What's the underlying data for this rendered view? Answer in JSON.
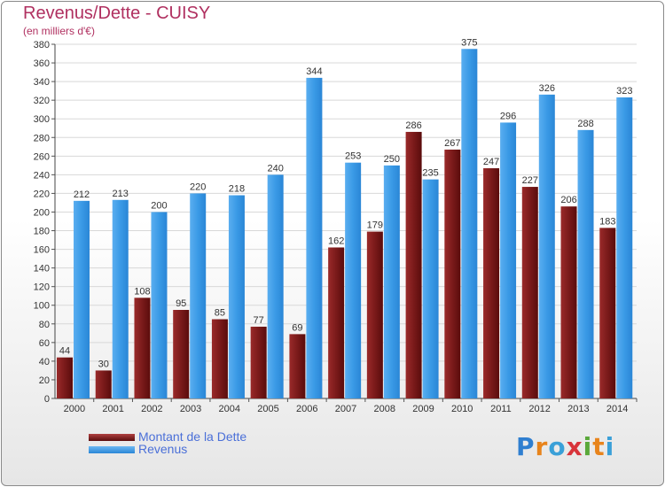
{
  "title": "Revenus/Dette - CUISY",
  "subtitle": "(en milliers d'€)",
  "logo": {
    "text": "Proxiti"
  },
  "colors": {
    "dette": "#7a1a1a",
    "revenus": "#3a9ae6",
    "title": "#b03060",
    "legend_text": "#4a6fd8"
  },
  "chart_data": {
    "type": "bar",
    "title": "Revenus/Dette - CUISY",
    "subtitle": "(en milliers d'€)",
    "categories": [
      "2000",
      "2001",
      "2002",
      "2003",
      "2004",
      "2005",
      "2006",
      "2007",
      "2008",
      "2009",
      "2010",
      "2011",
      "2012",
      "2013",
      "2014"
    ],
    "series": [
      {
        "name": "Montant de la Dette",
        "color": "#7a1a1a",
        "values": [
          44,
          30,
          108,
          95,
          85,
          77,
          69,
          162,
          179,
          286,
          267,
          247,
          227,
          206,
          183
        ]
      },
      {
        "name": "Revenus",
        "color": "#3a9ae6",
        "values": [
          212,
          213,
          200,
          220,
          218,
          240,
          344,
          253,
          250,
          235,
          375,
          296,
          326,
          288,
          323
        ]
      }
    ],
    "ylim": [
      0,
      380
    ],
    "ytick_step": 20,
    "grid": true,
    "legend_position": "bottom-left"
  }
}
